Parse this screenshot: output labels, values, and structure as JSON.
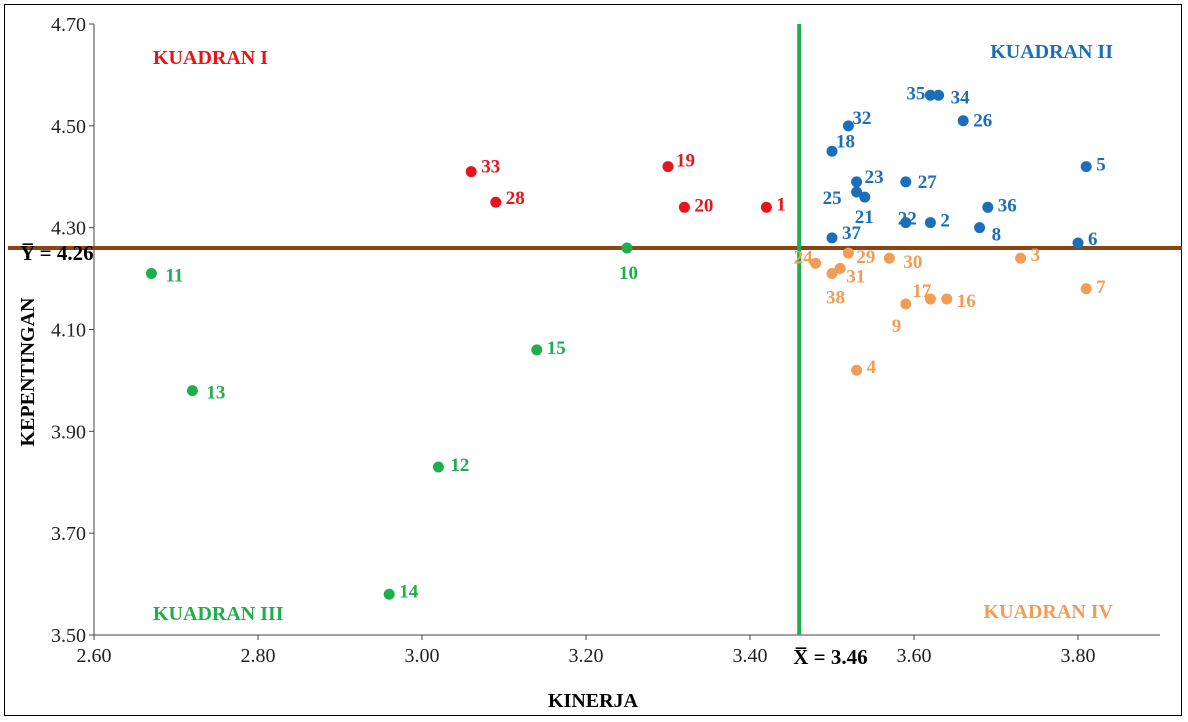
{
  "chart_data": {
    "type": "scatter",
    "xlabel": "KINERJA",
    "ylabel": "KEPENTINGAN",
    "xlim": [
      2.6,
      3.9
    ],
    "ylim": [
      3.5,
      4.7
    ],
    "x_ticks": [
      "2.60",
      "2.80",
      "3.00",
      "3.20",
      "3.40",
      "3.60",
      "3.80"
    ],
    "y_ticks": [
      "3.50",
      "3.70",
      "3.90",
      "4.10",
      "4.30",
      "4.50",
      "4.70"
    ],
    "grid": false,
    "mean_x": {
      "value": 3.46,
      "label": "X̅̅ = 3.46",
      "color": "#1fae4c"
    },
    "mean_y": {
      "value": 4.26,
      "label": "Y̅̅ = 4.26",
      "color": "#8b4513"
    },
    "quadrants": [
      {
        "label": "KUADRAN I",
        "color": "#e8141b"
      },
      {
        "label": "KUADRAN II",
        "color": "#1b6fba"
      },
      {
        "label": "KUADRAN III",
        "color": "#1fae4c"
      },
      {
        "label": "KUADRAN IV",
        "color": "#f29c55"
      }
    ],
    "points": [
      {
        "label": "33",
        "x": 3.06,
        "y": 4.41,
        "q": 0
      },
      {
        "label": "28",
        "x": 3.09,
        "y": 4.35,
        "q": 0
      },
      {
        "label": "19",
        "x": 3.3,
        "y": 4.42,
        "q": 0
      },
      {
        "label": "20",
        "x": 3.32,
        "y": 4.34,
        "q": 0
      },
      {
        "label": "1",
        "x": 3.42,
        "y": 4.34,
        "q": 0
      },
      {
        "label": "35",
        "x": 3.62,
        "y": 4.56,
        "q": 1
      },
      {
        "label": "34",
        "x": 3.63,
        "y": 4.56,
        "q": 1
      },
      {
        "label": "32",
        "x": 3.52,
        "y": 4.5,
        "q": 1
      },
      {
        "label": "26",
        "x": 3.66,
        "y": 4.51,
        "q": 1
      },
      {
        "label": "18",
        "x": 3.5,
        "y": 4.45,
        "q": 1
      },
      {
        "label": "5",
        "x": 3.81,
        "y": 4.42,
        "q": 1
      },
      {
        "label": "23",
        "x": 3.53,
        "y": 4.39,
        "q": 1
      },
      {
        "label": "27",
        "x": 3.59,
        "y": 4.39,
        "q": 1
      },
      {
        "label": "25",
        "x": 3.53,
        "y": 4.37,
        "q": 1
      },
      {
        "label": "21",
        "x": 3.54,
        "y": 4.36,
        "q": 1
      },
      {
        "label": "36",
        "x": 3.69,
        "y": 4.34,
        "q": 1
      },
      {
        "label": "22",
        "x": 3.59,
        "y": 4.31,
        "q": 1
      },
      {
        "label": "2",
        "x": 3.62,
        "y": 4.31,
        "q": 1
      },
      {
        "label": "8",
        "x": 3.68,
        "y": 4.3,
        "q": 1
      },
      {
        "label": "37",
        "x": 3.5,
        "y": 4.28,
        "q": 1
      },
      {
        "label": "6",
        "x": 3.8,
        "y": 4.27,
        "q": 1
      },
      {
        "label": "11",
        "x": 2.67,
        "y": 4.21,
        "q": 2
      },
      {
        "label": "10",
        "x": 3.25,
        "y": 4.26,
        "q": 2
      },
      {
        "label": "15",
        "x": 3.14,
        "y": 4.06,
        "q": 2
      },
      {
        "label": "13",
        "x": 2.72,
        "y": 3.98,
        "q": 2
      },
      {
        "label": "12",
        "x": 3.02,
        "y": 3.83,
        "q": 2
      },
      {
        "label": "14",
        "x": 2.96,
        "y": 3.58,
        "q": 2
      },
      {
        "label": "24",
        "x": 3.48,
        "y": 4.23,
        "q": 3
      },
      {
        "label": "29",
        "x": 3.52,
        "y": 4.25,
        "q": 3
      },
      {
        "label": "30",
        "x": 3.57,
        "y": 4.24,
        "q": 3
      },
      {
        "label": "31",
        "x": 3.51,
        "y": 4.22,
        "q": 3
      },
      {
        "label": "38",
        "x": 3.5,
        "y": 4.21,
        "q": 3
      },
      {
        "label": "3",
        "x": 3.73,
        "y": 4.24,
        "q": 3
      },
      {
        "label": "7",
        "x": 3.81,
        "y": 4.18,
        "q": 3
      },
      {
        "label": "17",
        "x": 3.62,
        "y": 4.16,
        "q": 3
      },
      {
        "label": "16",
        "x": 3.64,
        "y": 4.16,
        "q": 3
      },
      {
        "label": "9",
        "x": 3.59,
        "y": 4.15,
        "q": 3
      },
      {
        "label": "4",
        "x": 3.53,
        "y": 4.02,
        "q": 3
      }
    ]
  }
}
